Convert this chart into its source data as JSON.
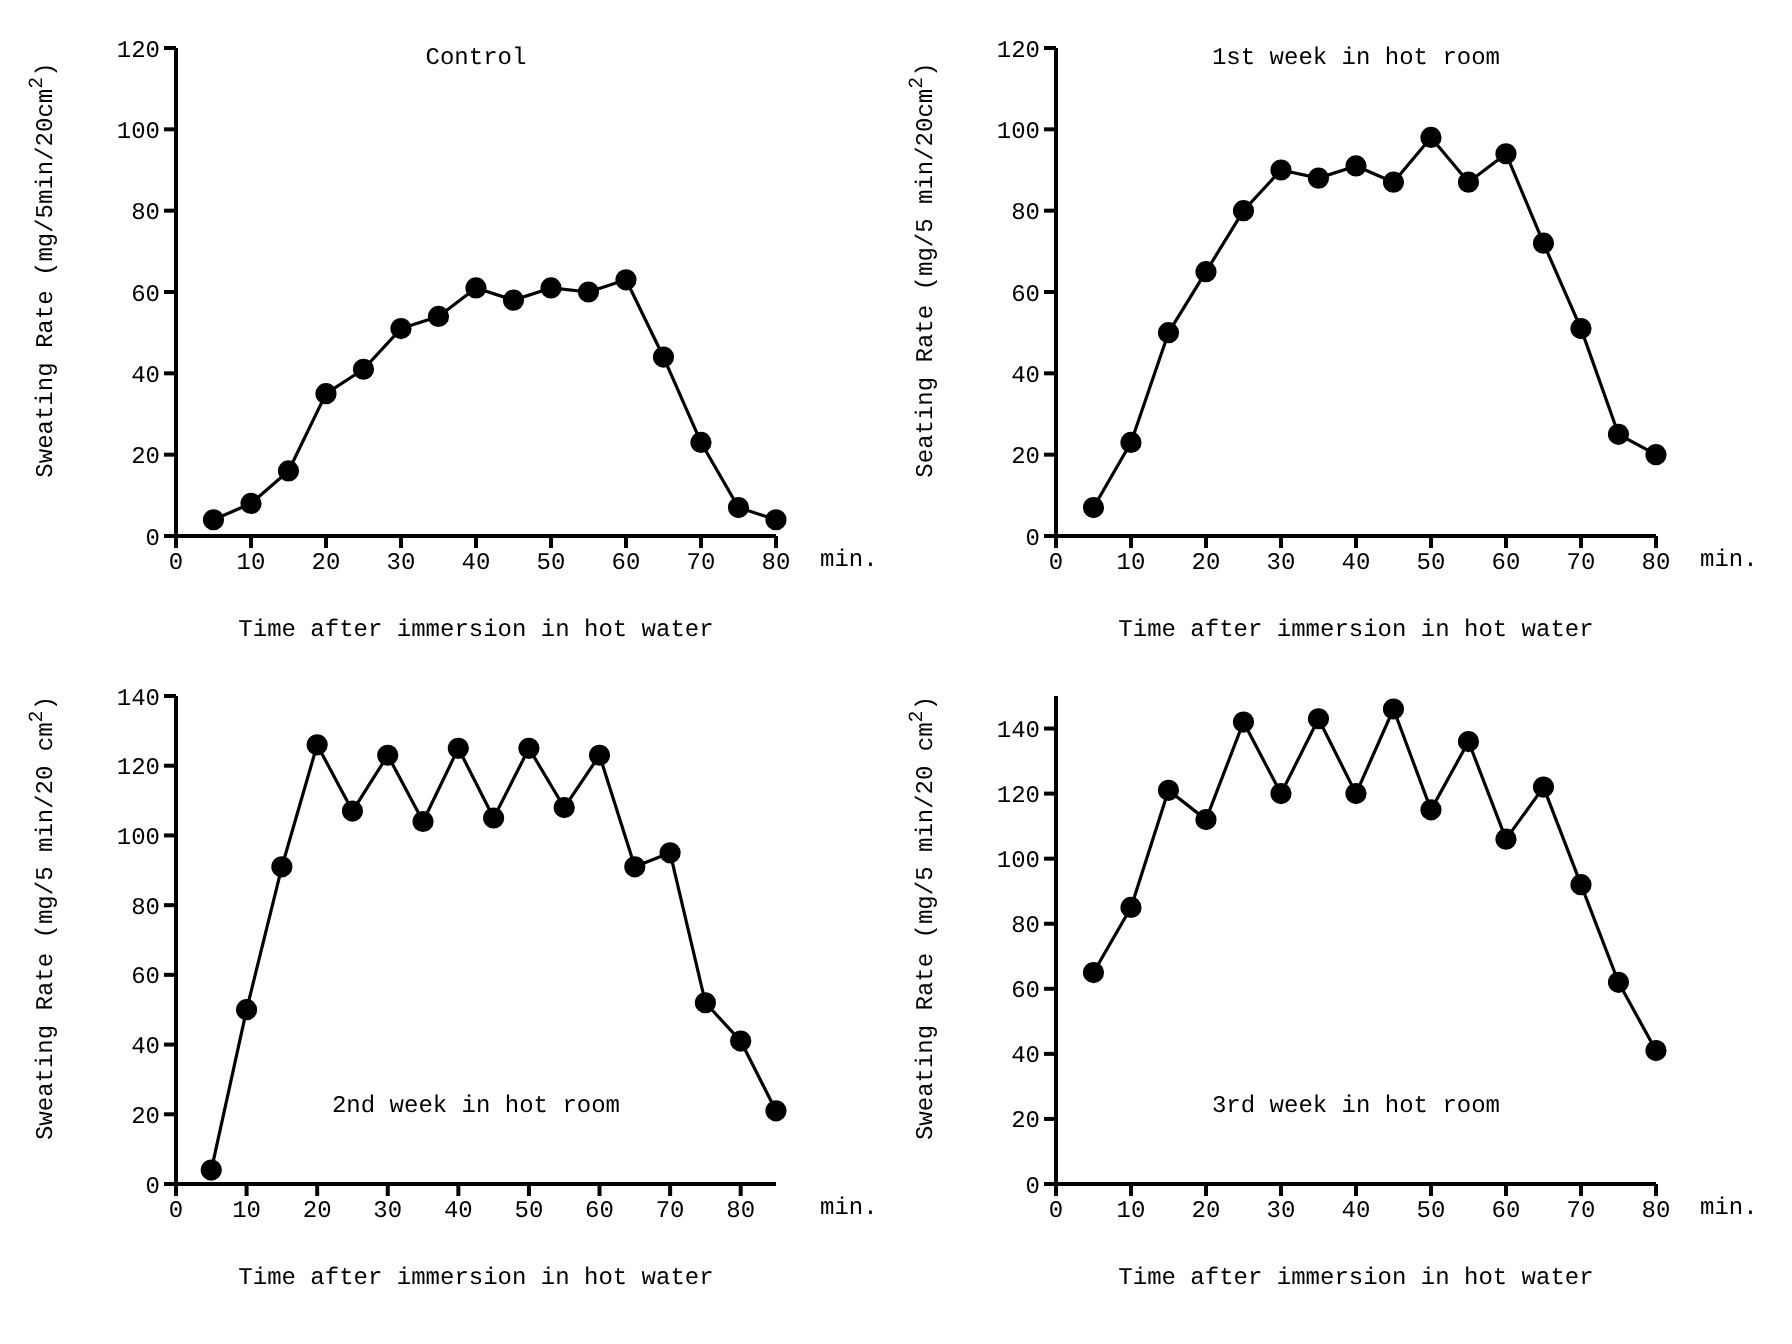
{
  "chart_data": [
    {
      "type": "line",
      "title": "Control",
      "xlabel": "Time after immersion in hot water",
      "ylabel": "Sweating Rate (mg/5min/20cm$^{2}$)",
      "annotations": [
        "min."
      ],
      "marker": "circle",
      "x": [
        5,
        10,
        15,
        20,
        25,
        30,
        35,
        40,
        45,
        50,
        55,
        60,
        65,
        70,
        75,
        80
      ],
      "xlim": [
        0,
        80
      ],
      "xticks": [
        0,
        10,
        20,
        30,
        40,
        50,
        60,
        70,
        80
      ],
      "ylim": [
        0,
        120
      ],
      "yticks": [
        0,
        20,
        40,
        60,
        80,
        100,
        120
      ],
      "series": [
        {
          "color": "#000000",
          "values": [
            4,
            8,
            16,
            35,
            41,
            51,
            54,
            61,
            58,
            61,
            60,
            63,
            44,
            23,
            7,
            4
          ]
        }
      ]
    },
    {
      "type": "line",
      "title": "1st week in hot room",
      "xlabel": "Time after immersion in hot water",
      "ylabel": "Seating Rate (mg/5 min/20cm$^{2}$)",
      "annotations": [
        "min."
      ],
      "marker": "circle",
      "x": [
        5,
        10,
        15,
        20,
        25,
        30,
        35,
        40,
        45,
        50,
        55,
        60,
        65,
        70,
        75,
        80
      ],
      "xlim": [
        0,
        80
      ],
      "xticks": [
        0,
        10,
        20,
        30,
        40,
        50,
        60,
        70,
        80
      ],
      "ylim": [
        0,
        120
      ],
      "yticks": [
        0,
        20,
        40,
        60,
        80,
        100,
        120
      ],
      "series": [
        {
          "color": "#000000",
          "values": [
            7,
            23,
            50,
            65,
            80,
            90,
            88,
            91,
            87,
            98,
            87,
            94,
            72,
            51,
            25,
            20
          ]
        }
      ]
    },
    {
      "type": "line",
      "title": "2nd week in hot room",
      "xlabel": "Time after immersion in hot water",
      "ylabel": "Sweating Rate (mg/5 min/20 cm$^{2}$)",
      "annotations": [
        "min."
      ],
      "marker": "circle",
      "x": [
        5,
        10,
        15,
        20,
        25,
        30,
        35,
        40,
        45,
        50,
        55,
        60,
        65,
        70,
        75,
        80,
        85
      ],
      "xlim": [
        0,
        85
      ],
      "xticks": [
        0,
        10,
        20,
        30,
        40,
        50,
        60,
        70,
        80
      ],
      "ylim": [
        0,
        140
      ],
      "yticks": [
        0,
        20,
        40,
        60,
        80,
        100,
        120,
        140
      ],
      "series": [
        {
          "color": "#000000",
          "values": [
            4,
            50,
            91,
            126,
            107,
            123,
            104,
            125,
            105,
            125,
            108,
            123,
            91,
            95,
            52,
            41,
            21
          ]
        }
      ]
    },
    {
      "type": "line",
      "title": "3rd week in hot room",
      "xlabel": "Time after immersion in hot water",
      "ylabel": "Sweating Rate (mg/5 min/20 cm$^{2}$)",
      "annotations": [
        "min."
      ],
      "marker": "circle",
      "x": [
        5,
        10,
        15,
        20,
        25,
        30,
        35,
        40,
        45,
        50,
        55,
        60,
        65,
        70,
        75,
        80
      ],
      "xlim": [
        0,
        80
      ],
      "xticks": [
        0,
        10,
        20,
        30,
        40,
        50,
        60,
        70,
        80
      ],
      "ylim": [
        0,
        150
      ],
      "yticks": [
        0,
        20,
        40,
        60,
        80,
        100,
        120,
        140
      ],
      "series": [
        {
          "color": "#000000",
          "values": [
            65,
            85,
            121,
            112,
            142,
            120,
            143,
            120,
            146,
            115,
            136,
            106,
            122,
            92,
            62,
            41
          ]
        }
      ]
    }
  ]
}
